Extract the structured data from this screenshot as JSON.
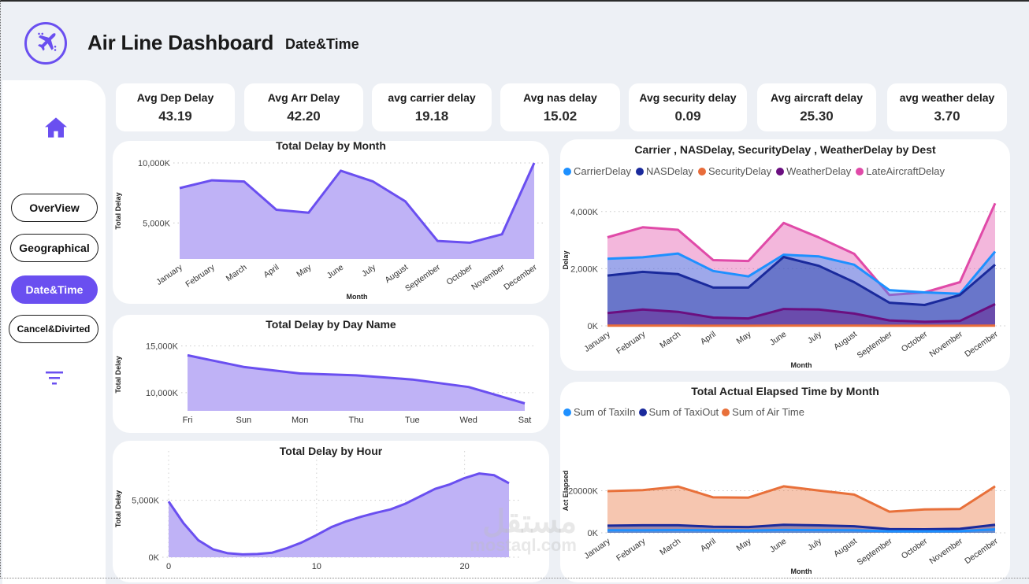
{
  "header": {
    "title": "Air Line Dashboard",
    "subtitle": "Date&Time",
    "logo_icon": "airplane-icon"
  },
  "sidebar": {
    "home_icon": "home-icon",
    "filter_icon": "filter-icon",
    "items": [
      {
        "label": "OverView",
        "active": false
      },
      {
        "label": "Geographical",
        "active": false
      },
      {
        "label": "Date&Time",
        "active": true
      },
      {
        "label": "Cancel&Divirted",
        "active": false
      }
    ]
  },
  "kpis": [
    {
      "label": "Avg Dep Delay",
      "value": "43.19"
    },
    {
      "label": "Avg Arr Delay",
      "value": "42.20"
    },
    {
      "label": "avg carrier delay",
      "value": "19.18"
    },
    {
      "label": "Avg nas delay",
      "value": "15.02"
    },
    {
      "label": "Avg security delay",
      "value": "0.09"
    },
    {
      "label": "Avg aircraft delay",
      "value": "25.30"
    },
    {
      "label": "avg weather delay",
      "value": "3.70"
    }
  ],
  "colors": {
    "accent": "#6a4ff0",
    "area_fill": "#bfb2f6",
    "carrier": "#1e90ff",
    "nas": "#1a2a9c",
    "security": "#e86c3a",
    "weather": "#6b0f80",
    "late_aircraft": "#e04aa8",
    "air_time": "#e8703a"
  },
  "watermark": {
    "text1": "مستقل",
    "text2": "mostaql.com"
  },
  "chart_data": [
    {
      "id": "delay_by_month",
      "type": "area",
      "title": "Total Delay by Month",
      "xlabel": "Month",
      "ylabel": "Total Delay",
      "categories": [
        "January",
        "February",
        "March",
        "April",
        "May",
        "June",
        "July",
        "August",
        "September",
        "October",
        "November",
        "December"
      ],
      "values": [
        7900,
        8550,
        8450,
        6100,
        5850,
        9350,
        8450,
        6800,
        3500,
        3350,
        4050,
        10000
      ],
      "unit": "K",
      "yticks": [
        5000,
        10000
      ],
      "ytick_labels": [
        "5,000K",
        "10,000K"
      ],
      "ylim": [
        2000,
        10000
      ],
      "grid": true
    },
    {
      "id": "delay_by_day",
      "type": "area",
      "title": "Total Delay by Day Name",
      "xlabel": "",
      "ylabel": "Total Delay",
      "categories": [
        "Fri",
        "Sun",
        "Mon",
        "Thu",
        "Tue",
        "Wed",
        "Sat"
      ],
      "values": [
        14000,
        12750,
        12050,
        11850,
        11400,
        10600,
        8850
      ],
      "unit": "K",
      "yticks": [
        10000,
        15000
      ],
      "ytick_labels": [
        "10,000K",
        "15,000K"
      ],
      "ylim": [
        8050,
        15800
      ],
      "grid": true
    },
    {
      "id": "delay_by_hour",
      "type": "area",
      "title": "Total Delay by Hour",
      "xlabel": "",
      "ylabel": "Total Delay",
      "x": [
        0,
        1,
        2,
        3,
        4,
        5,
        6,
        7,
        8,
        9,
        10,
        11,
        12,
        13,
        14,
        15,
        16,
        17,
        18,
        19,
        20,
        21,
        22,
        23
      ],
      "values": [
        4900,
        3000,
        1500,
        700,
        350,
        250,
        280,
        400,
        800,
        1300,
        1950,
        2650,
        3150,
        3550,
        3900,
        4200,
        4700,
        5350,
        6000,
        6400,
        6950,
        7350,
        7200,
        6500
      ],
      "unit": "K",
      "xticks": [
        0,
        10,
        20
      ],
      "xtick_labels": [
        "0",
        "10",
        "20"
      ],
      "yticks": [
        0,
        5000
      ],
      "ytick_labels": [
        "0K",
        "5,000K"
      ],
      "xlim": [
        0,
        23
      ],
      "ylim": [
        0,
        8500
      ],
      "grid": true
    },
    {
      "id": "delay_types_by_dest",
      "type": "area",
      "title": "Carrier , NASDelay, SecurityDelay , WeatherDelay by Dest",
      "xlabel": "Month",
      "ylabel": "Delay",
      "legend_position": "top-left",
      "categories": [
        "January",
        "February",
        "March",
        "April",
        "May",
        "June",
        "July",
        "August",
        "September",
        "October",
        "November",
        "December"
      ],
      "series": [
        {
          "name": "CarrierDelay",
          "color": "#1e90ff",
          "values": [
            2350,
            2400,
            2530,
            1920,
            1730,
            2490,
            2430,
            2140,
            1250,
            1170,
            1120,
            2600
          ]
        },
        {
          "name": "NASDelay",
          "color": "#1a2a9c",
          "values": [
            1760,
            1890,
            1810,
            1340,
            1340,
            2410,
            2100,
            1530,
            810,
            730,
            1080,
            2140
          ]
        },
        {
          "name": "SecurityDelay",
          "color": "#e86c3a",
          "values": [
            5,
            5,
            5,
            4,
            4,
            5,
            5,
            5,
            3,
            3,
            3,
            6
          ]
        },
        {
          "name": "WeatherDelay",
          "color": "#6b0f80",
          "values": [
            450,
            570,
            490,
            290,
            260,
            590,
            570,
            430,
            190,
            140,
            170,
            760
          ]
        },
        {
          "name": "LateAircraftDelay",
          "color": "#e04aa8",
          "values": [
            3100,
            3450,
            3360,
            2300,
            2270,
            3600,
            3090,
            2520,
            1080,
            1170,
            1530,
            4290
          ]
        }
      ],
      "unit": "K",
      "yticks": [
        0,
        2000,
        4000
      ],
      "ytick_labels": [
        "0K",
        "2,000K",
        "4,000K"
      ],
      "ylim": [
        0,
        4600
      ],
      "grid": true
    },
    {
      "id": "elapsed_by_month",
      "type": "area",
      "title": "Total Actual Elapsed Time by Month",
      "xlabel": "Month",
      "ylabel": "Act Elapsed",
      "legend_position": "top-left",
      "categories": [
        "January",
        "February",
        "March",
        "April",
        "May",
        "June",
        "July",
        "August",
        "September",
        "October",
        "November",
        "December"
      ],
      "series": [
        {
          "name": "Sum of TaxiIn",
          "color": "#1e90ff",
          "values": [
            1250,
            1250,
            1300,
            1150,
            1100,
            1350,
            1300,
            1200,
            750,
            750,
            800,
            1650
          ]
        },
        {
          "name": "Sum of TaxiOut",
          "color": "#1a2a9c",
          "values": [
            3400,
            3600,
            3600,
            2900,
            2750,
            3850,
            3550,
            3150,
            1750,
            1700,
            1900,
            3850
          ]
        },
        {
          "name": "Sum of Air Time",
          "color": "#e8703a",
          "values": [
            19800,
            20300,
            22000,
            16850,
            16750,
            22100,
            20100,
            18150,
            10050,
            11100,
            11300,
            22100
          ]
        }
      ],
      "unit": "K",
      "yticks": [
        0,
        20000
      ],
      "ytick_labels": [
        "0K",
        "20000K"
      ],
      "ylim": [
        0,
        40000
      ],
      "grid": true
    }
  ]
}
